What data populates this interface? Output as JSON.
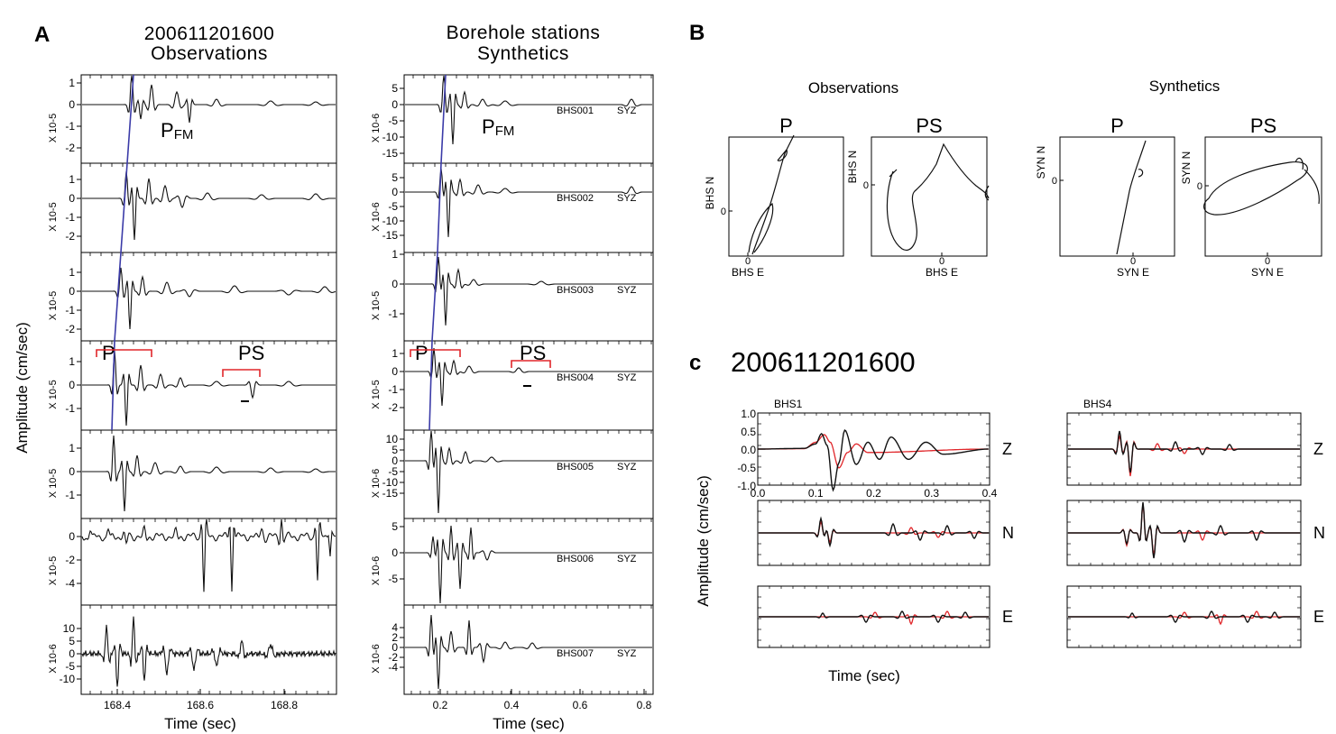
{
  "panelA": {
    "letter": "A",
    "obs": {
      "title_line1": "200611201600",
      "title_line2": "Observations",
      "xlabel": "Time (sec)",
      "xticks": [
        "168.4",
        "168.6",
        "168.8"
      ],
      "ylabel": "Amplitude (cm/sec)",
      "tracks": [
        {
          "scale": "X 10-5",
          "yticks": [
            "1",
            "0",
            "-1",
            "-2"
          ]
        },
        {
          "scale": "X 10-5",
          "yticks": [
            "1",
            "0",
            "-1",
            "-2"
          ]
        },
        {
          "scale": "X 10-5",
          "yticks": [
            "1",
            "0",
            "-1",
            "-2"
          ]
        },
        {
          "scale": "X 10-5",
          "yticks": [
            "1",
            "0",
            "-1"
          ]
        },
        {
          "scale": "X 10-5",
          "yticks": [
            "1",
            "0",
            "-1"
          ]
        },
        {
          "scale": "X 10-5",
          "yticks": [
            "0",
            "-2",
            "-4"
          ]
        },
        {
          "scale": "X 10-6",
          "yticks": [
            "10",
            "5",
            "0",
            "-5",
            "-10"
          ]
        }
      ],
      "label_pfm_main": "P",
      "label_pfm_sub": "FM",
      "label_p": "P",
      "label_ps": "PS"
    },
    "syn": {
      "title_line1": "Borehole stations",
      "title_line2": "Synthetics",
      "xlabel": "Time (sec)",
      "xticks": [
        "0.2",
        "0.4",
        "0.6",
        "0.8"
      ],
      "tracks": [
        {
          "scale": "X 10-6",
          "yticks": [
            "5",
            "0",
            "-5",
            "-10",
            "-15"
          ],
          "station": "BHS001",
          "comp": "SYZ"
        },
        {
          "scale": "X 10-6",
          "yticks": [
            "5",
            "0",
            "-5",
            "-10",
            "-15"
          ],
          "station": "BHS002",
          "comp": "SYZ"
        },
        {
          "scale": "X 10-5",
          "yticks": [
            "1",
            "0",
            "-1",
            "-2"
          ],
          "station": "BHS003",
          "comp": "SYZ"
        },
        {
          "scale": "X 10-5",
          "yticks": [
            "2",
            "1",
            "0",
            "-1",
            "-2"
          ],
          "station": "BHS004",
          "comp": "SYZ"
        },
        {
          "scale": "X 10-6",
          "yticks": [
            "10",
            "5",
            "0",
            "-5",
            "-10",
            "-15"
          ],
          "station": "BHS005",
          "comp": "SYZ"
        },
        {
          "scale": "X 10-6",
          "yticks": [
            "5",
            "0",
            "-5"
          ],
          "station": "BHS006",
          "comp": "SYZ"
        },
        {
          "scale": "X 10-6",
          "yticks": [
            "4",
            "2",
            "0",
            "-2",
            "-4"
          ],
          "station": "BHS007",
          "comp": "SYZ"
        }
      ],
      "label_pfm_main": "P",
      "label_pfm_sub": "FM",
      "label_p": "P",
      "label_ps": "PS"
    }
  },
  "panelB": {
    "letter": "B",
    "obs_title": "Observations",
    "syn_title": "Synthetics",
    "plots": [
      {
        "title": "P",
        "xlabel": "BHS E",
        "ylabel": "BHS N",
        "zero": "0",
        "zero_x": "0"
      },
      {
        "title": "PS",
        "xlabel": "BHS E",
        "ylabel": "BHS N",
        "zero": "0",
        "zero_x": "0"
      },
      {
        "title": "P",
        "xlabel": "SYN E",
        "ylabel": "SYN N",
        "zero": "0",
        "zero_x": "0"
      },
      {
        "title": "PS",
        "xlabel": "SYN E",
        "ylabel": "SYN N",
        "zero": "0",
        "zero_x": "0"
      }
    ]
  },
  "panelC": {
    "letter": "c",
    "event": "200611201600",
    "ylabel": "Amplitude (cm/sec)",
    "xlabel": "Time (sec)",
    "stations": [
      "BHS1",
      "BHS4"
    ],
    "components": [
      "Z",
      "N",
      "E"
    ],
    "yticks": [
      "1.0",
      "0.5",
      "0.0",
      "-0.5",
      "-1.0"
    ],
    "xticks": [
      "0.0",
      "0.1",
      "0.2",
      "0.3",
      "0.4"
    ]
  },
  "chart_data": [
    {
      "type": "line",
      "title": "200611201600 Observations",
      "xlabel": "Time (sec)",
      "ylabel": "Amplitude (cm/sec)",
      "xlim": [
        168.28,
        168.97
      ],
      "series": [
        {
          "values": [
            [
              168.28,
              0
            ],
            [
              168.32,
              0.1
            ],
            [
              168.35,
              0.4
            ],
            [
              168.37,
              1.1
            ],
            [
              168.39,
              -1.0
            ],
            [
              168.41,
              -2.4
            ],
            [
              168.43,
              -0.5
            ],
            [
              168.44,
              1.0
            ],
            [
              168.46,
              0.2
            ],
            [
              168.5,
              0.8
            ],
            [
              168.53,
              -0.7
            ],
            [
              168.56,
              0.1
            ],
            [
              168.7,
              0.05
            ],
            [
              168.97,
              0
            ]
          ]
        }
      ]
    },
    {
      "type": "line",
      "title": "Borehole stations Synthetics",
      "xlabel": "Time (sec)",
      "xlim": [
        0.0,
        0.82
      ],
      "series": [
        {
          "values": [
            [
              0.0,
              0
            ],
            [
              0.15,
              0.5
            ],
            [
              0.18,
              4.0
            ],
            [
              0.2,
              7.0
            ],
            [
              0.22,
              -7.0
            ],
            [
              0.24,
              -16.0
            ],
            [
              0.26,
              -5.0
            ],
            [
              0.29,
              3.0
            ],
            [
              0.33,
              -1.5
            ],
            [
              0.4,
              0.5
            ],
            [
              0.82,
              0
            ]
          ]
        }
      ]
    },
    {
      "type": "line",
      "title": "200611201600",
      "xlabel": "Time (sec)",
      "ylabel": "Amplitude (cm/sec)",
      "xlim": [
        0.0,
        0.4
      ],
      "ylim": [
        -1.0,
        1.0
      ],
      "series": [
        {
          "values": [
            [
              0.0,
              0
            ],
            [
              0.08,
              0.02
            ],
            [
              0.1,
              0.15
            ],
            [
              0.11,
              0.45
            ],
            [
              0.12,
              0.1
            ],
            [
              0.13,
              -1.2
            ],
            [
              0.14,
              -0.4
            ],
            [
              0.15,
              0.55
            ],
            [
              0.17,
              -0.45
            ],
            [
              0.19,
              0.2
            ],
            [
              0.21,
              -0.3
            ],
            [
              0.23,
              0.35
            ],
            [
              0.26,
              -0.3
            ],
            [
              0.29,
              0.2
            ],
            [
              0.32,
              -0.15
            ],
            [
              0.4,
              0
            ]
          ]
        },
        {
          "values": [
            [
              0.0,
              0
            ],
            [
              0.08,
              0.01
            ],
            [
              0.1,
              0.2
            ],
            [
              0.115,
              0.42
            ],
            [
              0.125,
              0.2
            ],
            [
              0.14,
              -0.55
            ],
            [
              0.155,
              -0.1
            ],
            [
              0.17,
              0.15
            ],
            [
              0.19,
              -0.1
            ],
            [
              0.4,
              0
            ]
          ]
        }
      ]
    }
  ]
}
